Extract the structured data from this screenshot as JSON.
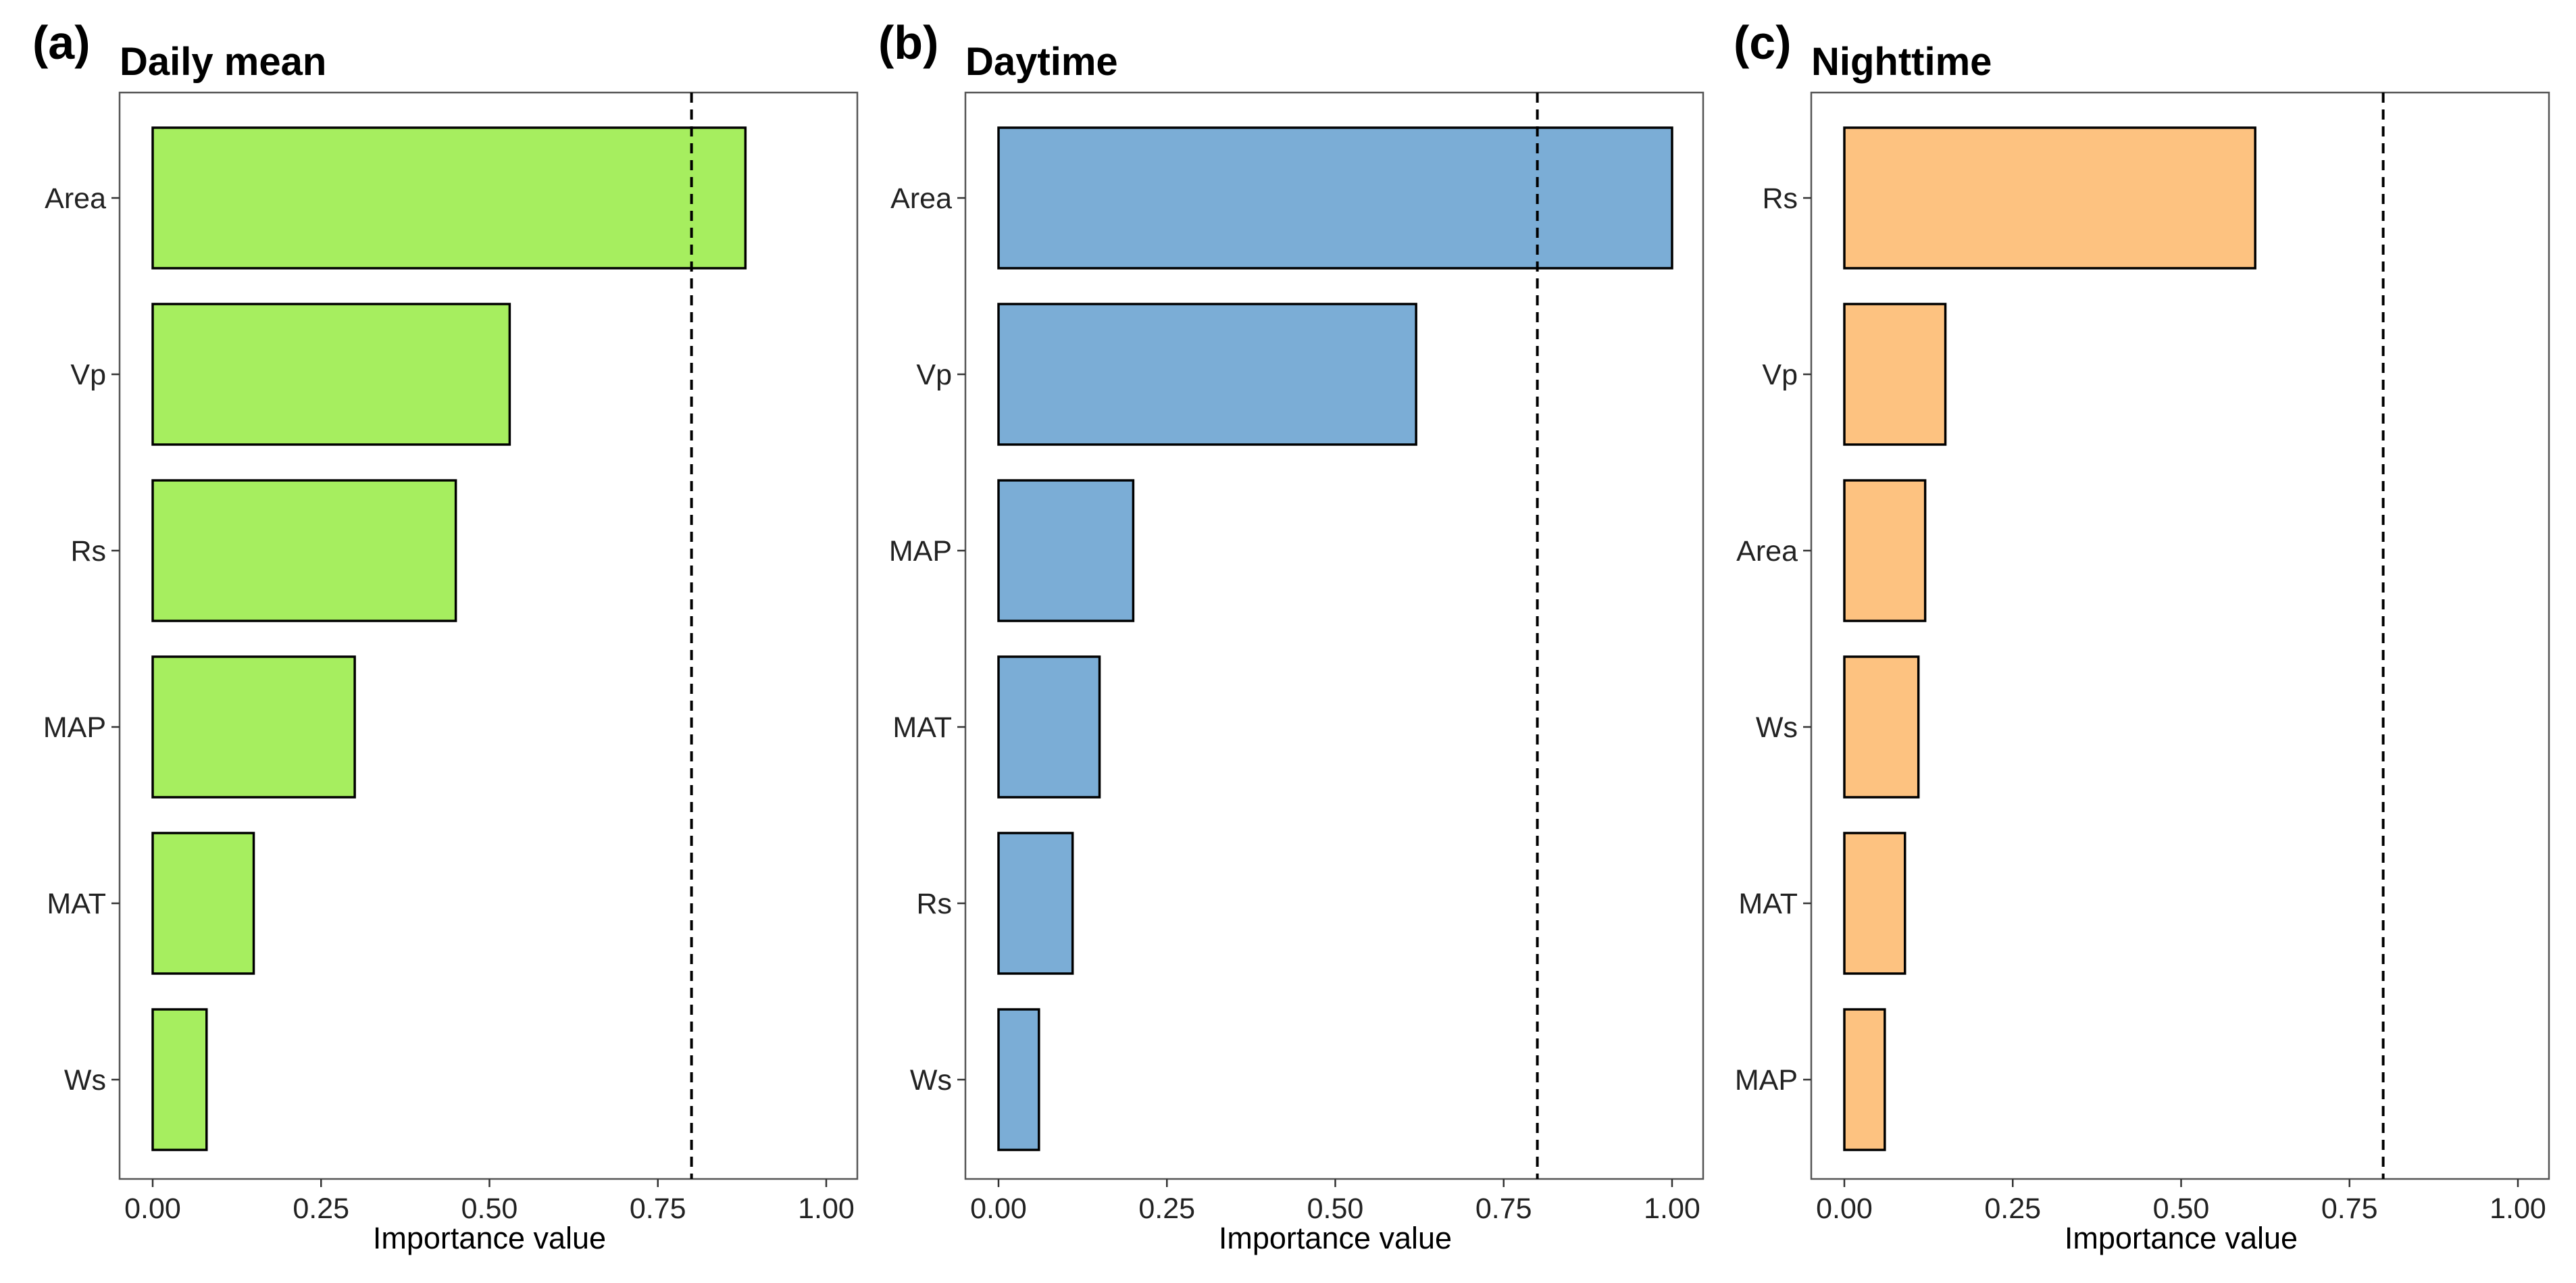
{
  "chart_data": [
    {
      "type": "bar",
      "orientation": "horizontal",
      "panel_label": "(a)",
      "title": "Daily mean",
      "categories": [
        "Area",
        "Vp",
        "Rs",
        "MAP",
        "MAT",
        "Ws"
      ],
      "values": [
        0.88,
        0.53,
        0.45,
        0.3,
        0.15,
        0.08
      ],
      "xlabel": "Importance value",
      "ylabel": "",
      "xlim": [
        0,
        1
      ],
      "xticks": [
        "0.00",
        "0.25",
        "0.50",
        "0.75",
        "1.00"
      ],
      "threshold": 0.8,
      "color": "#a6ee5f",
      "grid": false
    },
    {
      "type": "bar",
      "orientation": "horizontal",
      "panel_label": "(b)",
      "title": "Daytime",
      "categories": [
        "Area",
        "Vp",
        "MAP",
        "MAT",
        "Rs",
        "Ws"
      ],
      "values": [
        1.0,
        0.62,
        0.2,
        0.15,
        0.11,
        0.06
      ],
      "xlabel": "Importance value",
      "ylabel": "",
      "xlim": [
        0,
        1
      ],
      "xticks": [
        "0.00",
        "0.25",
        "0.50",
        "0.75",
        "1.00"
      ],
      "threshold": 0.8,
      "color": "#7badd6",
      "grid": false
    },
    {
      "type": "bar",
      "orientation": "horizontal",
      "panel_label": "(c)",
      "title": "Nighttime",
      "categories": [
        "Rs",
        "Vp",
        "Area",
        "Ws",
        "MAT",
        "MAP"
      ],
      "values": [
        0.61,
        0.15,
        0.12,
        0.11,
        0.09,
        0.06
      ],
      "xlabel": "Importance value",
      "ylabel": "",
      "xlim": [
        0,
        1
      ],
      "xticks": [
        "0.00",
        "0.25",
        "0.50",
        "0.75",
        "1.00"
      ],
      "threshold": 0.8,
      "color": "#fdc280",
      "grid": false
    }
  ]
}
